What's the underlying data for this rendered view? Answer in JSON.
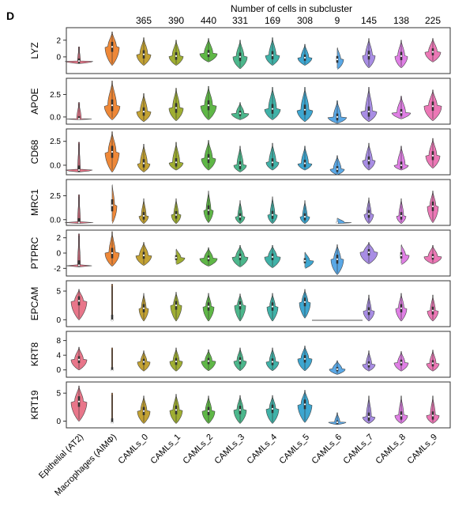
{
  "chart_data": {
    "type": "violin",
    "panel_label": "D",
    "header": "Number of cells in subcluster",
    "groups": [
      "Epithelial (AT2)",
      "Macrophages (AIMΦ)",
      "CAMLs_0",
      "CAMLs_1",
      "CAMLs_2",
      "CAMLs_3",
      "CAMLs_4",
      "CAMLs_5",
      "CAMLs_6",
      "CAMLs_7",
      "CAMLs_8",
      "CAMLs_9"
    ],
    "cell_counts": [
      "",
      "",
      "365",
      "390",
      "440",
      "331",
      "169",
      "308",
      "9",
      "145",
      "138",
      "225"
    ],
    "colors": [
      "#e8768a",
      "#ee8838",
      "#c3a233",
      "#9fae32",
      "#5fb747",
      "#4cb78c",
      "#40b2a8",
      "#3da6d0",
      "#5aa8e6",
      "#a88de4",
      "#df7fe4",
      "#ec78b6"
    ],
    "genes": [
      {
        "name": "LYZ",
        "ylim": [
          -2,
          3.5
        ],
        "ticks": [
          "2",
          "0"
        ],
        "tick_values": [
          2,
          0
        ],
        "shapes": [
          {
            "center": -0.5,
            "low": -0.8,
            "high": 1.2,
            "width": 0.9,
            "peak": 0.1
          },
          {
            "center": 1.2,
            "low": -1.0,
            "high": 3.0,
            "width": 0.45,
            "peak": 0.6
          },
          {
            "center": 0.3,
            "low": -1.0,
            "high": 2.3,
            "width": 0.45,
            "peak": 0.55
          },
          {
            "center": 0.1,
            "low": -1.0,
            "high": 2.0,
            "width": 0.45,
            "peak": 0.55
          },
          {
            "center": 0.4,
            "low": -0.6,
            "high": 2.2,
            "width": 0.55,
            "peak": 0.5
          },
          {
            "center": 0.0,
            "low": -1.4,
            "high": 2.0,
            "width": 0.45,
            "peak": 0.55
          },
          {
            "center": 0.2,
            "low": -1.0,
            "high": 2.3,
            "width": 0.45,
            "peak": 0.5
          },
          {
            "center": -0.1,
            "low": -1.0,
            "high": 1.5,
            "width": 0.45,
            "peak": 0.55
          },
          {
            "center": -0.3,
            "low": -1.5,
            "high": 1.2,
            "width": 0.4,
            "peak": 0.55
          },
          {
            "center": 0.2,
            "low": -1.3,
            "high": 2.2,
            "width": 0.4,
            "peak": 0.55
          },
          {
            "center": 0.1,
            "low": -1.3,
            "high": 2.0,
            "width": 0.4,
            "peak": 0.55
          },
          {
            "center": 0.6,
            "low": -0.6,
            "high": 2.2,
            "width": 0.5,
            "peak": 0.55
          }
        ]
      },
      {
        "name": "APOE",
        "ylim": [
          -0.8,
          4.3
        ],
        "ticks": [
          "2.5",
          "0.0"
        ],
        "tick_values": [
          2.5,
          0
        ],
        "shapes": [
          {
            "center": -0.2,
            "low": -0.3,
            "high": 1.6,
            "width": 0.95,
            "peak": 0.15
          },
          {
            "center": 1.3,
            "low": -0.3,
            "high": 4.0,
            "width": 0.5,
            "peak": 0.55
          },
          {
            "center": 0.6,
            "low": -0.5,
            "high": 2.6,
            "width": 0.45,
            "peak": 0.5
          },
          {
            "center": 1.0,
            "low": -0.4,
            "high": 3.2,
            "width": 0.45,
            "peak": 0.5
          },
          {
            "center": 1.3,
            "low": -0.3,
            "high": 3.4,
            "width": 0.5,
            "peak": 0.5
          },
          {
            "center": 0.4,
            "low": -0.3,
            "high": 1.6,
            "width": 0.55,
            "peak": 0.45
          },
          {
            "center": 0.9,
            "low": -0.3,
            "high": 3.3,
            "width": 0.5,
            "peak": 0.5
          },
          {
            "center": 0.8,
            "low": -0.5,
            "high": 3.3,
            "width": 0.5,
            "peak": 0.5
          },
          {
            "center": 0.0,
            "low": -0.7,
            "high": 1.8,
            "width": 0.6,
            "peak": 0.4
          },
          {
            "center": 0.6,
            "low": -0.5,
            "high": 3.3,
            "width": 0.5,
            "peak": 0.45
          },
          {
            "center": 0.5,
            "low": -0.2,
            "high": 2.3,
            "width": 0.6,
            "peak": 0.45
          },
          {
            "center": 1.2,
            "low": -0.4,
            "high": 3.0,
            "width": 0.55,
            "peak": 0.5
          }
        ]
      },
      {
        "name": "CD68",
        "ylim": [
          -1,
          3.8
        ],
        "ticks": [
          "2.5",
          "0.0"
        ],
        "tick_values": [
          2.5,
          0
        ],
        "shapes": [
          {
            "center": -0.5,
            "low": -0.7,
            "high": 2.4,
            "width": 0.85,
            "peak": 0.1
          },
          {
            "center": 1.4,
            "low": -0.7,
            "high": 3.5,
            "width": 0.45,
            "peak": 0.55
          },
          {
            "center": 0.2,
            "low": -0.7,
            "high": 2.2,
            "width": 0.4,
            "peak": 0.55
          },
          {
            "center": 0.3,
            "low": -0.5,
            "high": 2.4,
            "width": 0.45,
            "peak": 0.5
          },
          {
            "center": 0.7,
            "low": -0.5,
            "high": 2.6,
            "width": 0.45,
            "peak": 0.55
          },
          {
            "center": 0.0,
            "low": -0.7,
            "high": 2.0,
            "width": 0.4,
            "peak": 0.5
          },
          {
            "center": 0.3,
            "low": -0.5,
            "high": 2.3,
            "width": 0.4,
            "peak": 0.55
          },
          {
            "center": 0.2,
            "low": -0.5,
            "high": 2.0,
            "width": 0.45,
            "peak": 0.5
          },
          {
            "center": -0.4,
            "low": -1.0,
            "high": 1.0,
            "width": 0.45,
            "peak": 0.55
          },
          {
            "center": 0.5,
            "low": -0.5,
            "high": 2.3,
            "width": 0.4,
            "peak": 0.55
          },
          {
            "center": 0.0,
            "low": -0.5,
            "high": 2.0,
            "width": 0.45,
            "peak": 0.55
          },
          {
            "center": 1.0,
            "low": -0.3,
            "high": 2.8,
            "width": 0.45,
            "peak": 0.55
          }
        ]
      },
      {
        "name": "MRC1",
        "ylim": [
          -0.6,
          4.2
        ],
        "ticks": [
          "2.5",
          "0.0"
        ],
        "tick_values": [
          2.5,
          0
        ],
        "shapes": [
          {
            "center": -0.3,
            "low": -0.4,
            "high": 2.6,
            "width": 0.9,
            "peak": 0.1
          },
          {
            "center": 1.5,
            "low": -0.4,
            "high": 3.8,
            "width": 0.3,
            "peak": 0.5
          },
          {
            "center": 0.4,
            "low": -0.4,
            "high": 2.2,
            "width": 0.3,
            "peak": 0.5
          },
          {
            "center": 0.5,
            "low": -0.4,
            "high": 2.2,
            "width": 0.3,
            "peak": 0.5
          },
          {
            "center": 1.0,
            "low": -0.3,
            "high": 3.0,
            "width": 0.3,
            "peak": 0.5
          },
          {
            "center": 0.3,
            "low": -0.4,
            "high": 2.0,
            "width": 0.3,
            "peak": 0.5
          },
          {
            "center": 0.5,
            "low": -0.4,
            "high": 2.4,
            "width": 0.3,
            "peak": 0.5
          },
          {
            "center": 0.3,
            "low": -0.4,
            "high": 2.0,
            "width": 0.3,
            "peak": 0.5
          },
          {
            "center": -0.3,
            "low": -0.4,
            "high": 0.2,
            "width": 0.9,
            "peak": 0.5
          },
          {
            "center": 0.6,
            "low": -0.4,
            "high": 2.3,
            "width": 0.3,
            "peak": 0.5
          },
          {
            "center": 0.4,
            "low": -0.4,
            "high": 2.2,
            "width": 0.3,
            "peak": 0.5
          },
          {
            "center": 1.4,
            "low": -0.3,
            "high": 3.0,
            "width": 0.35,
            "peak": 0.55
          }
        ]
      },
      {
        "name": "PTPRC",
        "ylim": [
          -3,
          3
        ],
        "ticks": [
          "2",
          "0",
          "-2"
        ],
        "tick_values": [
          2,
          0,
          -2
        ],
        "shapes": [
          {
            "center": -1.6,
            "low": -1.8,
            "high": 2.5,
            "width": 0.9,
            "peak": 0.1
          },
          {
            "center": 0.0,
            "low": -1.7,
            "high": 2.8,
            "width": 0.45,
            "peak": 0.45
          },
          {
            "center": -0.3,
            "low": -1.6,
            "high": 1.4,
            "width": 0.5,
            "peak": 0.55
          },
          {
            "center": -0.6,
            "low": -1.5,
            "high": 0.6,
            "width": 0.55,
            "peak": 0.55
          },
          {
            "center": -0.7,
            "low": -1.7,
            "high": 0.7,
            "width": 0.55,
            "peak": 0.5
          },
          {
            "center": -0.5,
            "low": -1.8,
            "high": 1.0,
            "width": 0.5,
            "peak": 0.55
          },
          {
            "center": -0.5,
            "low": -1.9,
            "high": 1.0,
            "width": 0.5,
            "peak": 0.55
          },
          {
            "center": -1.0,
            "low": -2.0,
            "high": 0.2,
            "width": 0.55,
            "peak": 0.55
          },
          {
            "center": -0.8,
            "low": -2.8,
            "high": 1.1,
            "width": 0.4,
            "peak": 0.55
          },
          {
            "center": 0.1,
            "low": -1.4,
            "high": 1.4,
            "width": 0.55,
            "peak": 0.6
          },
          {
            "center": -0.3,
            "low": -1.5,
            "high": 1.2,
            "width": 0.5,
            "peak": 0.55
          },
          {
            "center": -0.5,
            "low": -1.4,
            "high": 1.0,
            "width": 0.55,
            "peak": 0.55
          }
        ]
      },
      {
        "name": "EPCAM",
        "ylim": [
          -1.2,
          6.8
        ],
        "ticks": [
          "5",
          "0"
        ],
        "tick_values": [
          5,
          0
        ],
        "shapes": [
          {
            "center": 3.3,
            "low": 0.0,
            "high": 5.3,
            "width": 0.5,
            "peak": 0.55
          },
          {
            "center": -0.1,
            "low": -0.2,
            "high": 6.2,
            "width": 0.9,
            "peak": 0.03
          },
          {
            "center": 2.0,
            "low": -0.2,
            "high": 4.6,
            "width": 0.3,
            "peak": 0.5
          },
          {
            "center": 2.5,
            "low": -0.2,
            "high": 4.8,
            "width": 0.35,
            "peak": 0.5
          },
          {
            "center": 2.3,
            "low": -0.2,
            "high": 4.6,
            "width": 0.35,
            "peak": 0.5
          },
          {
            "center": 2.5,
            "low": -0.2,
            "high": 4.5,
            "width": 0.35,
            "peak": 0.5
          },
          {
            "center": 2.3,
            "low": -0.2,
            "high": 4.6,
            "width": 0.35,
            "peak": 0.5
          },
          {
            "center": 3.1,
            "low": 0.3,
            "high": 5.3,
            "width": 0.35,
            "peak": 0.55
          },
          {
            "center": -0.1,
            "low": -0.1,
            "high": -0.1,
            "width": 1.6,
            "peak": 0.5
          },
          {
            "center": 1.5,
            "low": -0.2,
            "high": 4.3,
            "width": 0.35,
            "peak": 0.45
          },
          {
            "center": 2.0,
            "low": -0.2,
            "high": 4.6,
            "width": 0.35,
            "peak": 0.5
          },
          {
            "center": 1.6,
            "low": -0.2,
            "high": 4.3,
            "width": 0.35,
            "peak": 0.45
          }
        ]
      },
      {
        "name": "KRT8",
        "ylim": [
          -2,
          10.5
        ],
        "ticks": [
          "8",
          "4",
          "0"
        ],
        "tick_values": [
          8,
          4,
          0
        ],
        "shapes": [
          {
            "center": 2.8,
            "low": 0.0,
            "high": 6.2,
            "width": 0.5,
            "peak": 0.55
          },
          {
            "center": -0.2,
            "low": -0.3,
            "high": 6.0,
            "width": 0.9,
            "peak": 0.03
          },
          {
            "center": 2.2,
            "low": -0.3,
            "high": 5.2,
            "width": 0.4,
            "peak": 0.5
          },
          {
            "center": 2.3,
            "low": -0.3,
            "high": 6.0,
            "width": 0.4,
            "peak": 0.5
          },
          {
            "center": 2.4,
            "low": -0.2,
            "high": 5.5,
            "width": 0.45,
            "peak": 0.5
          },
          {
            "center": 2.5,
            "low": -0.2,
            "high": 6.0,
            "width": 0.4,
            "peak": 0.5
          },
          {
            "center": 2.2,
            "low": -0.2,
            "high": 6.0,
            "width": 0.4,
            "peak": 0.5
          },
          {
            "center": 3.0,
            "low": -0.2,
            "high": 6.5,
            "width": 0.45,
            "peak": 0.55
          },
          {
            "center": 0.2,
            "low": -1.2,
            "high": 2.5,
            "width": 0.5,
            "peak": 0.6
          },
          {
            "center": 1.5,
            "low": -0.3,
            "high": 5.2,
            "width": 0.4,
            "peak": 0.45
          },
          {
            "center": 2.0,
            "low": -0.3,
            "high": 5.0,
            "width": 0.45,
            "peak": 0.5
          },
          {
            "center": 1.8,
            "low": -0.3,
            "high": 5.4,
            "width": 0.4,
            "peak": 0.5
          }
        ]
      },
      {
        "name": "KRT19",
        "ylim": [
          -1.2,
          7
        ],
        "ticks": [
          "5",
          "0"
        ],
        "tick_values": [
          5,
          0
        ],
        "shapes": [
          {
            "center": 3.5,
            "low": 0.0,
            "high": 6.3,
            "width": 0.5,
            "peak": 0.55
          },
          {
            "center": -0.3,
            "low": -0.4,
            "high": 5.0,
            "width": 0.9,
            "peak": 0.03
          },
          {
            "center": 1.8,
            "low": -0.4,
            "high": 4.5,
            "width": 0.4,
            "peak": 0.5
          },
          {
            "center": 2.0,
            "low": -0.4,
            "high": 4.8,
            "width": 0.4,
            "peak": 0.5
          },
          {
            "center": 1.8,
            "low": -0.4,
            "high": 4.5,
            "width": 0.4,
            "peak": 0.5
          },
          {
            "center": 2.0,
            "low": -0.4,
            "high": 4.6,
            "width": 0.4,
            "peak": 0.5
          },
          {
            "center": 2.2,
            "low": -0.4,
            "high": 4.6,
            "width": 0.4,
            "peak": 0.5
          },
          {
            "center": 3.0,
            "low": -0.2,
            "high": 5.5,
            "width": 0.45,
            "peak": 0.55
          },
          {
            "center": -0.2,
            "low": -0.6,
            "high": 1.5,
            "width": 0.55,
            "peak": 0.3
          },
          {
            "center": 0.8,
            "low": -0.4,
            "high": 4.5,
            "width": 0.4,
            "peak": 0.4
          },
          {
            "center": 1.0,
            "low": -0.4,
            "high": 4.5,
            "width": 0.4,
            "peak": 0.4
          },
          {
            "center": 1.0,
            "low": -0.4,
            "high": 4.5,
            "width": 0.4,
            "peak": 0.4
          }
        ]
      }
    ]
  }
}
